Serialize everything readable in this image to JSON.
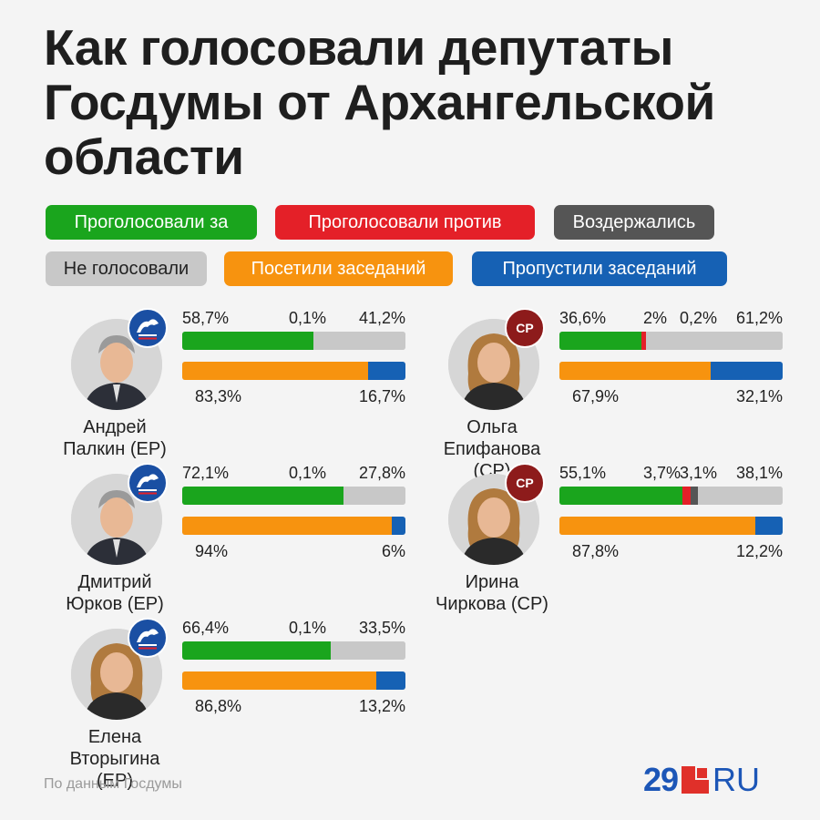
{
  "title": {
    "line1": "Как голосовали депутаты",
    "line2": "Госдумы от Архангельской",
    "line3": "области"
  },
  "legend": {
    "for": "Проголосовали за",
    "against": "Проголосовали против",
    "abstained": "Воздержались",
    "not_voted": "Не голосовали",
    "attended": "Посетили заседаний",
    "missed": "Пропустили заседаний"
  },
  "colors": {
    "for": "#1aa51d",
    "against": "#e42028",
    "abstained": "#555555",
    "not_voted": "#c8c8c8",
    "attended": "#f7930f",
    "missed": "#1661b4",
    "er_badge": "#1a4fa3",
    "sr_badge": "#8d1b1b"
  },
  "chart_data": {
    "type": "bar",
    "deputies": [
      {
        "name_line1": "Андрей",
        "name_line2": "Палкин (ЕР)",
        "party_badge": "ЕДИНАЯ РОССИЯ",
        "party_icon": "united-russia-logo",
        "votes": {
          "for": 58.7,
          "against": 0.1,
          "abstained": 0,
          "not_voted": 41.2
        },
        "vote_labels": {
          "for": "58,7%",
          "against": "0,1%",
          "abstained": "",
          "not_voted": "41,2%"
        },
        "attendance": {
          "attended": 83.3,
          "missed": 16.7
        },
        "attend_labels": {
          "attended": "83,3%",
          "missed": "16,7%"
        }
      },
      {
        "name_line1": "Дмитрий",
        "name_line2": "Юрков (ЕР)",
        "party_badge": "ЕДИНАЯ РОССИЯ",
        "party_icon": "united-russia-logo",
        "votes": {
          "for": 72.1,
          "against": 0.1,
          "abstained": 0,
          "not_voted": 27.8
        },
        "vote_labels": {
          "for": "72,1%",
          "against": "0,1%",
          "abstained": "",
          "not_voted": "27,8%"
        },
        "attendance": {
          "attended": 94,
          "missed": 6
        },
        "attend_labels": {
          "attended": "94%",
          "missed": "6%"
        }
      },
      {
        "name_line1": "Елена",
        "name_line2": "Вторыгина (ЕР)",
        "party_badge": "ЕДИНАЯ РОССИЯ",
        "party_icon": "united-russia-logo",
        "votes": {
          "for": 66.4,
          "against": 0.1,
          "abstained": 0,
          "not_voted": 33.5
        },
        "vote_labels": {
          "for": "66,4%",
          "against": "0,1%",
          "abstained": "",
          "not_voted": "33,5%"
        },
        "attendance": {
          "attended": 86.8,
          "missed": 13.2
        },
        "attend_labels": {
          "attended": "86,8%",
          "missed": "13,2%"
        }
      },
      {
        "name_line1": "Ольга",
        "name_line2": "Епифанова (СР)",
        "party_badge": "СР",
        "party_icon": "just-russia-logo",
        "votes": {
          "for": 36.6,
          "against": 2,
          "abstained": 0.2,
          "not_voted": 61.2
        },
        "vote_labels": {
          "for": "36,6%",
          "against": "2%",
          "abstained": "0,2%",
          "not_voted": "61,2%"
        },
        "attendance": {
          "attended": 67.9,
          "missed": 32.1
        },
        "attend_labels": {
          "attended": "67,9%",
          "missed": "32,1%"
        }
      },
      {
        "name_line1": "Ирина",
        "name_line2": "Чиркова (СР)",
        "party_badge": "СР",
        "party_icon": "just-russia-logo",
        "votes": {
          "for": 55.1,
          "against": 3.7,
          "abstained": 3.1,
          "not_voted": 38.1
        },
        "vote_labels": {
          "for": "55,1%",
          "against": "3,7%",
          "abstained": "3,1%",
          "not_voted": "38,1%"
        },
        "attendance": {
          "attended": 87.8,
          "missed": 12.2
        },
        "attend_labels": {
          "attended": "87,8%",
          "missed": "12,2%"
        }
      }
    ]
  },
  "footer": {
    "source": "По данным Госдумы",
    "logo_number": "29",
    "logo_domain": "RU"
  }
}
